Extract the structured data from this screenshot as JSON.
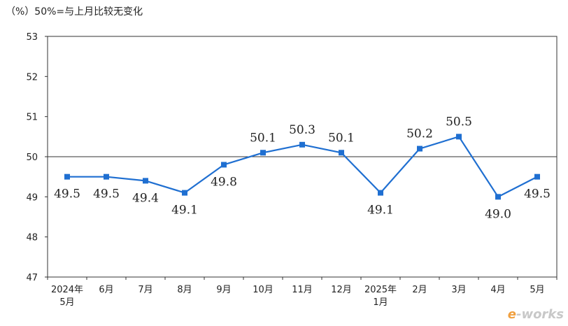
{
  "chart_data": {
    "type": "line",
    "title": "（%）50%=与上月比较无变化",
    "ylim": [
      47,
      53
    ],
    "yticks": [
      47,
      48,
      49,
      50,
      51,
      52,
      53
    ],
    "reference_line": 50,
    "categories": [
      "2024年5月",
      "6月",
      "7月",
      "8月",
      "9月",
      "10月",
      "11月",
      "12月",
      "2025年1月",
      "2月",
      "3月",
      "4月",
      "5月"
    ],
    "category_lines": [
      [
        "2024年",
        "5月"
      ],
      [
        "6月"
      ],
      [
        "7月"
      ],
      [
        "8月"
      ],
      [
        "9月"
      ],
      [
        "10月"
      ],
      [
        "11月"
      ],
      [
        "12月"
      ],
      [
        "2025年",
        "1月"
      ],
      [
        "2月"
      ],
      [
        "3月"
      ],
      [
        "4月"
      ],
      [
        "5月"
      ]
    ],
    "values": [
      49.5,
      49.5,
      49.4,
      49.1,
      49.8,
      50.1,
      50.3,
      50.1,
      49.1,
      50.2,
      50.5,
      49.0,
      49.5
    ],
    "labels": [
      "49.5",
      "49.5",
      "49.4",
      "49.1",
      "49.8",
      "50.1",
      "50.3",
      "50.1",
      "49.1",
      "50.2",
      "50.5",
      "49.0",
      "49.5"
    ],
    "label_position": [
      "below",
      "below",
      "below",
      "below",
      "below",
      "above",
      "above",
      "above",
      "below",
      "above",
      "above",
      "below",
      "below"
    ],
    "line_color": "#1f6fd1",
    "grid": false,
    "legend": "none"
  },
  "watermark": {
    "e": "e",
    "rest": "-works"
  }
}
